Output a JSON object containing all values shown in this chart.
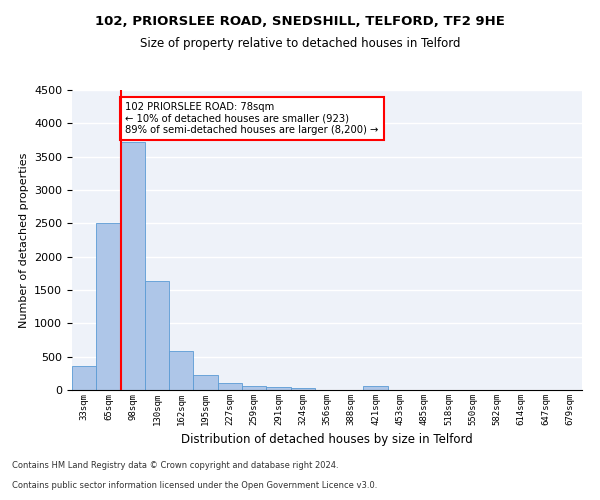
{
  "title1": "102, PRIORSLEE ROAD, SNEDSHILL, TELFORD, TF2 9HE",
  "title2": "Size of property relative to detached houses in Telford",
  "xlabel": "Distribution of detached houses by size in Telford",
  "ylabel": "Number of detached properties",
  "categories": [
    "33sqm",
    "65sqm",
    "98sqm",
    "130sqm",
    "162sqm",
    "195sqm",
    "227sqm",
    "259sqm",
    "291sqm",
    "324sqm",
    "356sqm",
    "388sqm",
    "421sqm",
    "453sqm",
    "485sqm",
    "518sqm",
    "550sqm",
    "582sqm",
    "614sqm",
    "647sqm",
    "679sqm"
  ],
  "values": [
    355,
    2500,
    3720,
    1640,
    590,
    220,
    105,
    62,
    46,
    35,
    0,
    0,
    60,
    0,
    0,
    0,
    0,
    0,
    0,
    0,
    0
  ],
  "bar_color": "#aec6e8",
  "bar_edge_color": "#5b9bd5",
  "vline_x_index": 1.5,
  "vline_color": "red",
  "annotation_text": "102 PRIORSLEE ROAD: 78sqm\n← 10% of detached houses are smaller (923)\n89% of semi-detached houses are larger (8,200) →",
  "annotation_box_color": "white",
  "annotation_box_edge_color": "red",
  "ylim": [
    0,
    4500
  ],
  "footnote1": "Contains HM Land Registry data © Crown copyright and database right 2024.",
  "footnote2": "Contains public sector information licensed under the Open Government Licence v3.0.",
  "background_color": "#eef2f9",
  "grid_color": "white"
}
